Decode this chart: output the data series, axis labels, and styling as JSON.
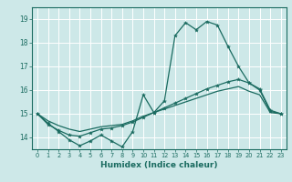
{
  "title": "",
  "xlabel": "Humidex (Indice chaleur)",
  "background_color": "#cde8e8",
  "grid_color": "#ffffff",
  "line_color": "#1a6b60",
  "xlim": [
    -0.5,
    23.5
  ],
  "ylim": [
    13.5,
    19.5
  ],
  "yticks": [
    14,
    15,
    16,
    17,
    18,
    19
  ],
  "xticks": [
    0,
    1,
    2,
    3,
    4,
    5,
    6,
    7,
    8,
    9,
    10,
    11,
    12,
    13,
    14,
    15,
    16,
    17,
    18,
    19,
    20,
    21,
    22,
    23
  ],
  "x": [
    0,
    1,
    2,
    3,
    4,
    5,
    6,
    7,
    8,
    9,
    10,
    11,
    12,
    13,
    14,
    15,
    16,
    17,
    18,
    19,
    20,
    21,
    22,
    23
  ],
  "line1": [
    15.0,
    14.6,
    14.25,
    13.9,
    13.65,
    13.85,
    14.1,
    13.85,
    13.6,
    14.25,
    15.8,
    15.05,
    15.55,
    18.3,
    18.85,
    18.55,
    18.9,
    18.75,
    17.85,
    17.0,
    16.3,
    16.0,
    15.1,
    15.0
  ],
  "line2": [
    15.0,
    14.55,
    14.3,
    14.1,
    14.05,
    14.2,
    14.35,
    14.4,
    14.5,
    14.65,
    14.85,
    15.05,
    15.25,
    15.45,
    15.65,
    15.85,
    16.05,
    16.2,
    16.35,
    16.45,
    16.3,
    16.05,
    15.15,
    15.0
  ],
  "line3": [
    15.0,
    14.7,
    14.5,
    14.35,
    14.25,
    14.35,
    14.45,
    14.5,
    14.55,
    14.7,
    14.9,
    15.05,
    15.2,
    15.35,
    15.5,
    15.65,
    15.8,
    15.95,
    16.05,
    16.15,
    15.95,
    15.8,
    15.05,
    15.0
  ]
}
